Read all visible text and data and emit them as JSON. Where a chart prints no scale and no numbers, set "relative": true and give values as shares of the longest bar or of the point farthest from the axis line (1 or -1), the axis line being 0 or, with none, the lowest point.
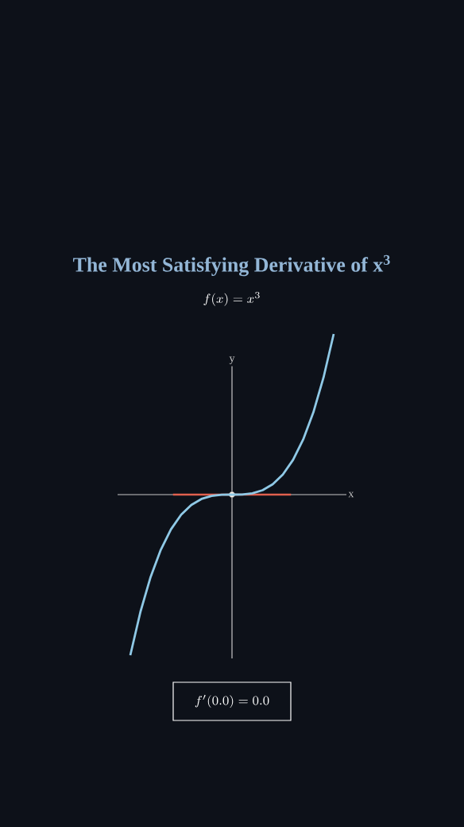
{
  "chart_data": {
    "type": "line",
    "title": "The Most Satisfying Derivative of x$^{3}$",
    "subtitle": "f(x) = x^3",
    "xlabel": "x",
    "ylabel": "y",
    "categories": [
      null,
      null,
      null,
      null,
      null,
      null,
      null,
      null,
      null,
      null,
      null,
      null,
      null,
      null,
      null,
      null,
      null,
      null,
      null,
      null,
      null
    ],
    "relative": true,
    "ref_lines": [
      {
        "axis": "y",
        "value": 0,
        "color": "#e0604e"
      }
    ],
    "series": [
      {
        "color": "#8fc9e6",
        "values": [
          -1,
          -0.729,
          -0.512,
          -0.343,
          -0.216,
          -0.125,
          -0.064,
          -0.027,
          -0.008,
          -0.001,
          0,
          0.001,
          0.008,
          0.027,
          0.064,
          0.125,
          0.216,
          0.343,
          0.512,
          0.729,
          1
        ]
      }
    ],
    "annotations": [
      "f'(0.0) = 0.0"
    ]
  }
}
